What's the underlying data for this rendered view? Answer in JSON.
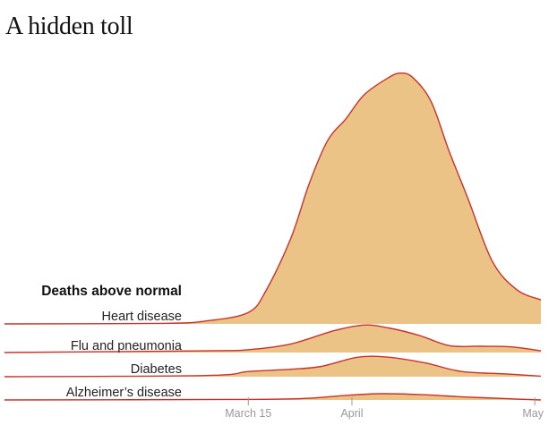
{
  "title": "A hidden toll",
  "chart_data": {
    "type": "area",
    "subtitle": "Deaths above normal",
    "xlabel": "",
    "ylabel": "",
    "x_ticks": [
      {
        "label": "March 15",
        "date": "2020-03-15"
      },
      {
        "label": "April",
        "date": "2020-04-01"
      },
      {
        "label": "May",
        "date": "2020-05-01"
      }
    ],
    "x_range": [
      "2020-02-04",
      "2020-05-02"
    ],
    "grid": false,
    "legend": "none",
    "series": [
      {
        "name": "Heart disease",
        "x": [
          "2020-02-04",
          "2020-03-01",
          "2020-03-08",
          "2020-03-15",
          "2020-03-18",
          "2020-03-22",
          "2020-03-25",
          "2020-03-28",
          "2020-03-31",
          "2020-04-03",
          "2020-04-07",
          "2020-04-09",
          "2020-04-11",
          "2020-04-14",
          "2020-04-17",
          "2020-04-20",
          "2020-04-24",
          "2020-04-28",
          "2020-05-02"
        ],
        "values": [
          0,
          1,
          5,
          20,
          60,
          150,
          245,
          320,
          358,
          400,
          430,
          438,
          430,
          388,
          300,
          220,
          110,
          60,
          42
        ]
      },
      {
        "name": "Flu and pneumonia",
        "x": [
          "2020-02-04",
          "2020-03-08",
          "2020-03-15",
          "2020-03-22",
          "2020-03-29",
          "2020-04-03",
          "2020-04-07",
          "2020-04-12",
          "2020-04-17",
          "2020-04-22",
          "2020-04-27",
          "2020-05-02"
        ],
        "values": [
          0,
          3,
          5,
          15,
          38,
          48,
          43,
          30,
          12,
          11,
          10,
          3
        ]
      },
      {
        "name": "Diabetes",
        "x": [
          "2020-02-04",
          "2020-03-08",
          "2020-03-15",
          "2020-03-22",
          "2020-03-27",
          "2020-04-02",
          "2020-04-07",
          "2020-04-13",
          "2020-04-19",
          "2020-04-26",
          "2020-05-02"
        ],
        "values": [
          0,
          2,
          9,
          13,
          18,
          34,
          34,
          24,
          9,
          5,
          1
        ]
      },
      {
        "name": "Alzheimer’s disease",
        "x": [
          "2020-02-04",
          "2020-03-15",
          "2020-03-25",
          "2020-03-31",
          "2020-04-06",
          "2020-04-13",
          "2020-04-20",
          "2020-04-27",
          "2020-05-02"
        ],
        "values": [
          0,
          1,
          3,
          8,
          11,
          9,
          5,
          2,
          0
        ]
      }
    ],
    "colors": {
      "fill": "#ecc387",
      "stroke": "#c9312b",
      "tick_text": "#999999",
      "label_text": "#222222"
    }
  }
}
